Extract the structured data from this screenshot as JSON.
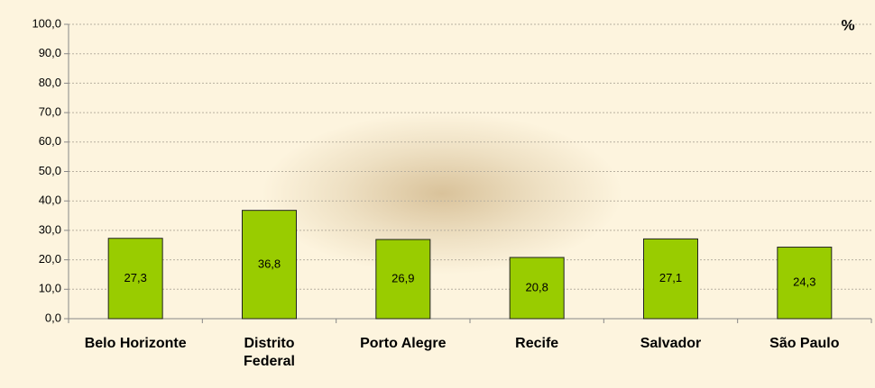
{
  "chart_data": {
    "type": "bar",
    "unit": "%",
    "categories": [
      "Belo Horizonte",
      "Distrito\nFederal",
      "Porto Alegre",
      "Recife",
      "Salvador",
      "São Paulo"
    ],
    "values": [
      27.3,
      36.8,
      26.9,
      20.8,
      27.1,
      24.3
    ],
    "value_labels": [
      "27,3",
      "36,8",
      "26,9",
      "20,8",
      "27,1",
      "24,3"
    ],
    "color": "#99cc00",
    "ylim": [
      0,
      100
    ],
    "yticks": [
      {
        "value": 0,
        "label": "0,0"
      },
      {
        "value": 10,
        "label": "10,0"
      },
      {
        "value": 20,
        "label": "20,0"
      },
      {
        "value": 30,
        "label": "30,0"
      },
      {
        "value": 40,
        "label": "40,0"
      },
      {
        "value": 50,
        "label": "50,0"
      },
      {
        "value": 60,
        "label": "60,0"
      },
      {
        "value": 70,
        "label": "70,0"
      },
      {
        "value": 80,
        "label": "80,0"
      },
      {
        "value": 90,
        "label": "90,0"
      },
      {
        "value": 100,
        "label": "100,0"
      }
    ],
    "grid": true
  }
}
